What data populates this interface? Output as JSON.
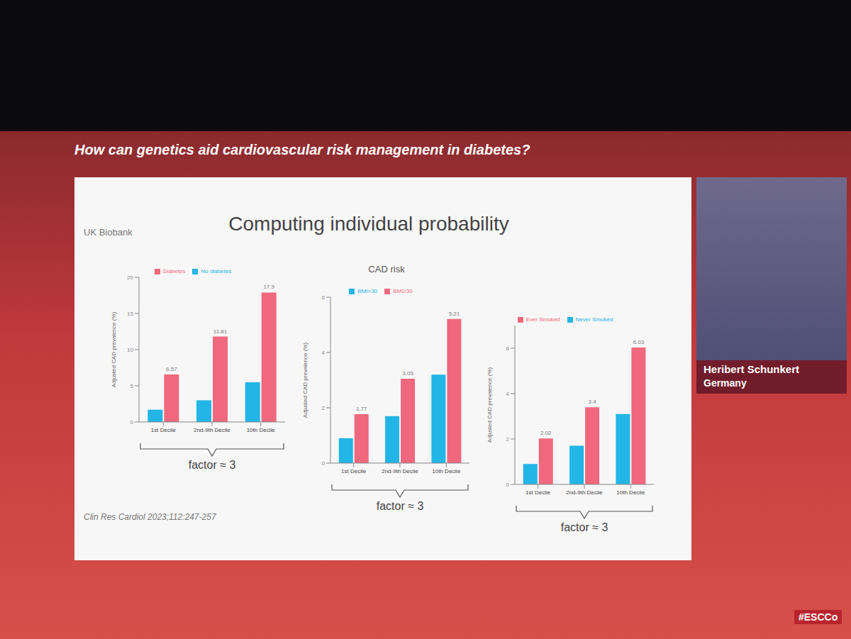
{
  "header": "How can genetics aid cardiovascular risk management in diabetes?",
  "title": "Computing individual probability",
  "cohort": "UK Biobank",
  "subtitle": "CAD risk",
  "source": "Clin Res Cardiol 2023;112:247-257",
  "speaker": {
    "name": "Heribert Schunkert",
    "country": "Germany"
  },
  "hashtag": "#ESCCo",
  "chart_data": [
    {
      "type": "bar",
      "ylabel": "Adjusted CAD prevalence (%)",
      "categories": [
        "1st Decile",
        "2nd-9th Decile",
        "10th Decile"
      ],
      "series": [
        {
          "name": "No diabetes",
          "color": "#22b5e6",
          "values": [
            1.7,
            3.0,
            5.5
          ]
        },
        {
          "name": "Diabetes",
          "color": "#f0687e",
          "values": [
            6.57,
            11.81,
            17.9
          ],
          "data_labels": true
        }
      ],
      "ylim": [
        0,
        20
      ],
      "yticks": [
        0,
        5,
        10,
        15,
        20
      ],
      "legend": "top",
      "annotation": "factor ≈ 3"
    },
    {
      "type": "bar",
      "ylabel": "Adjusted CAD prevalence (%)",
      "categories": [
        "1st Decile",
        "2nd-9th Decile",
        "10th Decile"
      ],
      "series": [
        {
          "name": "BMI<30",
          "color": "#22b5e6",
          "values": [
            0.9,
            1.7,
            3.2
          ]
        },
        {
          "name": "BMI≥30",
          "color": "#f0687e",
          "values": [
            1.77,
            3.05,
            5.21
          ],
          "data_labels": true
        }
      ],
      "ylim": [
        0,
        6
      ],
      "yticks": [
        0,
        2,
        4,
        6
      ],
      "legend": "top",
      "annotation": "factor ≈ 3"
    },
    {
      "type": "bar",
      "ylabel": "Adjusted CAD prevalence (%)",
      "categories": [
        "1st Decile",
        "2nd-9th Decile",
        "10th Decile"
      ],
      "series": [
        {
          "name": "Never Smoked",
          "color": "#22b5e6",
          "values": [
            0.9,
            1.7,
            3.1
          ]
        },
        {
          "name": "Ever Smoked",
          "color": "#f0687e",
          "values": [
            2.02,
            3.4,
            6.03
          ],
          "data_labels": true
        }
      ],
      "ylim": [
        0,
        7
      ],
      "yticks": [
        0,
        2,
        4,
        6
      ],
      "legend": "top",
      "annotation": "factor ≈ 3"
    }
  ]
}
